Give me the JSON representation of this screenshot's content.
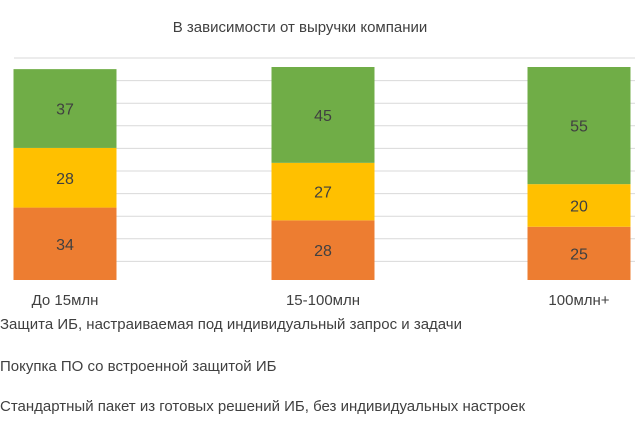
{
  "chart_data": {
    "type": "bar",
    "stacked": true,
    "title": "В зависимости от выручки компании",
    "categories": [
      "До 15млн",
      "15-100млн",
      "100млн+"
    ],
    "series": [
      {
        "name": "Стандартный пакет из готовых решений ИБ, без индивидуальных  настроек",
        "color": "#ED7D31",
        "values": [
          34,
          28,
          25
        ]
      },
      {
        "name": "Покупка ПО со встроенной защитой ИБ",
        "color": "#FFC000",
        "values": [
          28,
          27,
          20
        ]
      },
      {
        "name": "Защита ИБ, настраиваемая под индивидуальный  запрос и задачи",
        "color": "#70AD47",
        "values": [
          37,
          45,
          55
        ]
      }
    ],
    "ylim": [
      0,
      100
    ],
    "grid": true,
    "legend_position": "bottom-left"
  },
  "legend": [
    "Защита ИБ, настраиваемая под индивидуальный  запрос и задачи",
    "Покупка ПО со встроенной защитой ИБ",
    "Стандартный пакет из готовых решений ИБ, без индивидуальных  настроек"
  ]
}
